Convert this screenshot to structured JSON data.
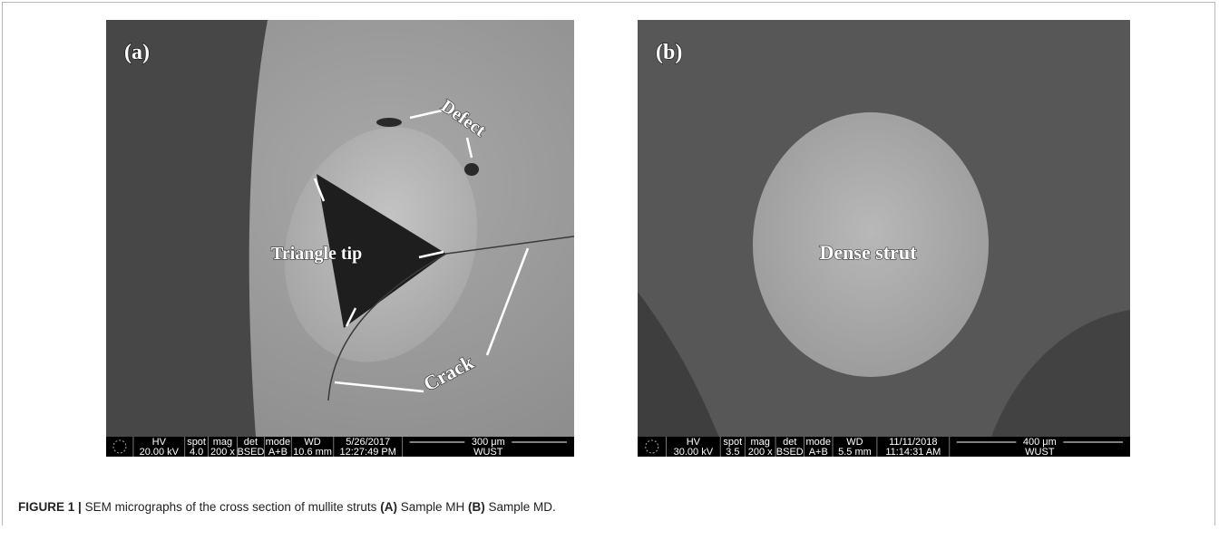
{
  "figure": {
    "panels": [
      {
        "label": "(a)",
        "annotations": [
          "Defect",
          "Triangle tip",
          "Crack"
        ],
        "info": [
          [
            "HV",
            "20.00 kV"
          ],
          [
            "spot",
            "4.0"
          ],
          [
            "mag",
            "200 x"
          ],
          [
            "det",
            "BSED"
          ],
          [
            "mode",
            "A+B"
          ],
          [
            "WD",
            "10.6 mm"
          ],
          [
            "5/26/2017",
            "12:27:49 PM"
          ],
          [
            "300 μm",
            "WUST"
          ]
        ]
      },
      {
        "label": "(b)",
        "annotations": [
          "Dense strut"
        ],
        "info": [
          [
            "HV",
            "30.00 kV"
          ],
          [
            "spot",
            "3.5"
          ],
          [
            "mag",
            "200 x"
          ],
          [
            "det",
            "BSED"
          ],
          [
            "mode",
            "A+B"
          ],
          [
            "WD",
            "5.5 mm"
          ],
          [
            "11/11/2018",
            "11:14:31 AM"
          ],
          [
            "400 μm",
            "WUST"
          ]
        ]
      }
    ],
    "caption": {
      "label": "FIGURE 1 |",
      "text_1": "SEM micrographs of the cross section of mullite struts",
      "ref_a": "(A)",
      "text_2": "Sample MH",
      "ref_b": "(B)",
      "text_3": "Sample MD."
    }
  }
}
